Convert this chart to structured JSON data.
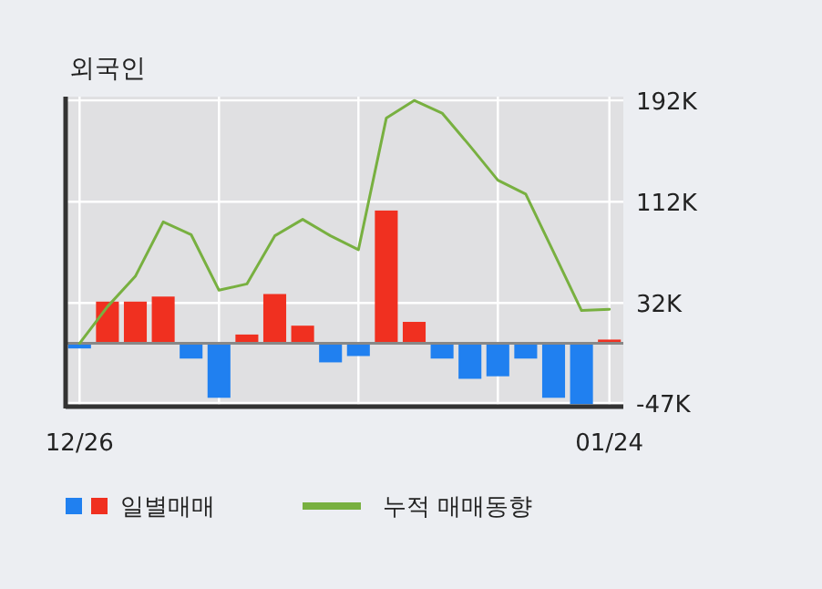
{
  "chart_data": {
    "type": "bar",
    "title": "외국인",
    "categories": [
      "12/26",
      null,
      null,
      null,
      null,
      null,
      null,
      null,
      null,
      null,
      null,
      null,
      null,
      null,
      null,
      null,
      null,
      null,
      null,
      "01/24"
    ],
    "series": [
      {
        "name": "일별매매",
        "colors": [
          "#2080f0",
          "#f03020",
          "#f03020",
          "#f03020",
          "#2080f0",
          "#2080f0",
          "#f03020",
          "#f03020",
          "#f03020",
          "#2080f0",
          "#2080f0",
          "#f03020",
          "#f03020",
          "#2080f0",
          "#2080f0",
          "#2080f0",
          "#2080f0",
          "#2080f0",
          "#2080f0",
          "#f03020"
        ],
        "values": [
          -4000,
          33000,
          33000,
          37000,
          -12000,
          -43000,
          7000,
          39000,
          14000,
          -15000,
          -10000,
          105000,
          17000,
          -12000,
          -28000,
          -26000,
          -12000,
          -43000,
          -48000,
          3000
        ]
      },
      {
        "name": "누적 매매동향",
        "type": "line",
        "color": "#78b040",
        "values": [
          0,
          29000,
          53000,
          96000,
          86000,
          42000,
          47000,
          85000,
          98000,
          85000,
          74000,
          178000,
          192000,
          182000,
          156000,
          129000,
          118000,
          72000,
          26000,
          27000
        ]
      }
    ],
    "ylim": [
      -50000,
      195000
    ],
    "yticks": [
      {
        "value": 192000,
        "label": "192K"
      },
      {
        "value": 112000,
        "label": "112K"
      },
      {
        "value": 32000,
        "label": "32K"
      },
      {
        "value": -47000,
        "label": "-47K"
      }
    ],
    "grid": true,
    "legend": "bottom",
    "marker": "none",
    "line_style": "solid"
  }
}
